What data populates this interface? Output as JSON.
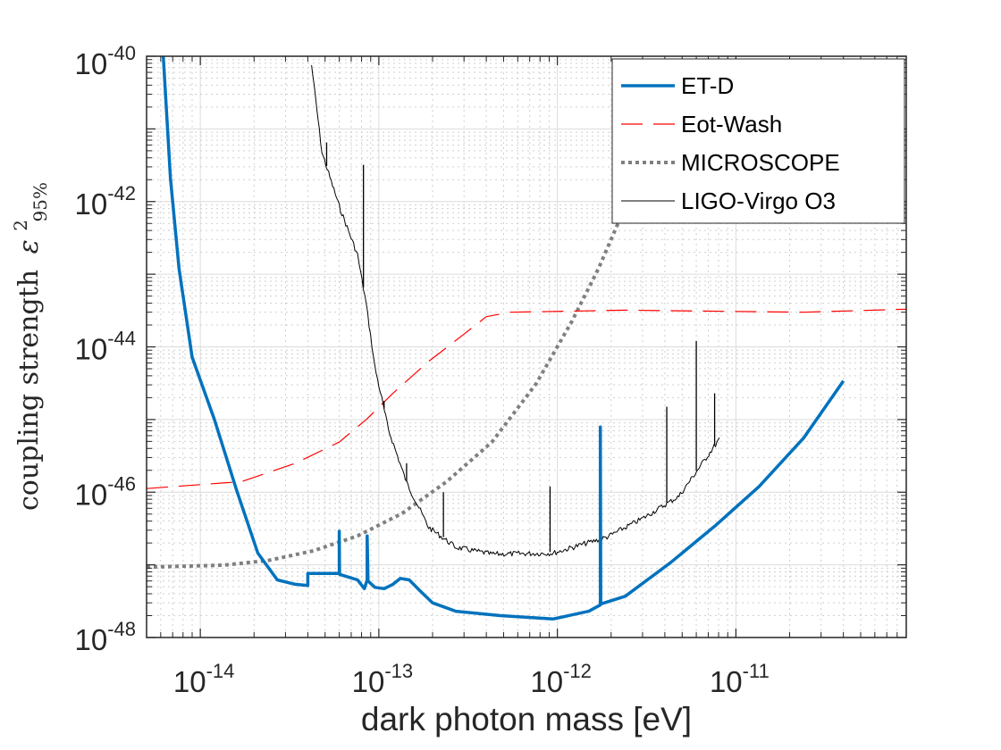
{
  "chart_data": {
    "type": "line",
    "xlabel": "dark photon mass [eV]",
    "ylabel": "coupling strength",
    "ylabel_symbol": "ε",
    "ylabel_sup": "2",
    "ylabel_sub": "95%",
    "x_scale": "log",
    "y_scale": "log",
    "xlim": [
      5e-15,
      9e-11
    ],
    "ylim": [
      1e-48,
      1e-40
    ],
    "x_ticks": [
      {
        "base": "10",
        "exp": "-14",
        "value": 1e-14
      },
      {
        "base": "10",
        "exp": "-13",
        "value": 1e-13
      },
      {
        "base": "10",
        "exp": "-12",
        "value": 1e-12
      },
      {
        "base": "10",
        "exp": "-11",
        "value": 1e-11
      }
    ],
    "y_ticks": [
      {
        "base": "10",
        "exp": "-40",
        "value": 1e-40
      },
      {
        "base": "10",
        "exp": "-42",
        "value": 1e-42
      },
      {
        "base": "10",
        "exp": "-44",
        "value": 1e-44
      },
      {
        "base": "10",
        "exp": "-46",
        "value": 1e-46
      },
      {
        "base": "10",
        "exp": "-48",
        "value": 1e-48
      }
    ],
    "grid": true,
    "legend_position": "top-right",
    "series": [
      {
        "name": "ET-D",
        "color": "#0072BD",
        "style": "solid-thick",
        "x": [
          6.2e-15,
          6.8e-15,
          7.6e-15,
          9e-15,
          1.2e-14,
          1.6e-14,
          2.1e-14,
          2.7e-14,
          3.4e-14,
          4e-14,
          4e-14,
          6e-14,
          6e-14,
          6.02e-14,
          7.6e-14,
          8.3e-14,
          8.6e-14,
          8.6e-14,
          8.7e-14,
          9.5e-14,
          1.07e-13,
          1.2e-13,
          1.32e-13,
          1.48e-13,
          1.7e-13,
          2e-13,
          2.7e-13,
          4.8e-13,
          9.5e-13,
          1.5e-12,
          1.74e-12,
          1.74e-12,
          1.75e-12,
          2.4e-12,
          4.3e-12,
          7.6e-12,
          1.35e-11,
          2.4e-11,
          4e-11
        ],
        "y": [
          1e-40,
          2.1e-42,
          1.2e-43,
          7.2e-45,
          1e-45,
          1.05e-46,
          1.45e-47,
          6.2e-48,
          5.4e-48,
          5.2e-48,
          7.6e-48,
          7.6e-48,
          2.9e-47,
          7.4e-48,
          6.2e-48,
          4.7e-48,
          6.2e-48,
          2.5e-47,
          6e-48,
          4.9e-48,
          4.7e-48,
          5.4e-48,
          6.5e-48,
          6.2e-48,
          4.4e-48,
          3e-48,
          2.3e-48,
          2e-48,
          1.8e-48,
          2.3e-48,
          2.8e-48,
          7.9e-46,
          2.9e-48,
          3.7e-48,
          1.07e-47,
          3.4e-47,
          1.2e-46,
          5.6e-46,
          3.4e-45
        ]
      },
      {
        "name": "Eot-Wash",
        "color": "#FF0000",
        "style": "dashed",
        "x": [
          5e-15,
          1.7e-14,
          3.4e-14,
          6e-14,
          8.5e-14,
          1.2e-13,
          1.9e-13,
          3e-13,
          4e-13,
          5.4e-13,
          2.4e-12,
          2.4e-11,
          9e-11
        ],
        "y": [
          1.12e-46,
          1.4e-46,
          2.5e-46,
          4.9e-46,
          1e-45,
          2.3e-45,
          6.3e-45,
          1.5e-44,
          2.6e-44,
          3e-44,
          3.2e-44,
          3e-44,
          3.3e-44
        ]
      },
      {
        "name": "MICROSCOPE",
        "color": "#808080",
        "style": "dotted",
        "x": [
          5e-15,
          1.35e-14,
          2.4e-14,
          4.3e-14,
          7.6e-14,
          1.35e-13,
          2.4e-13,
          4.3e-13,
          7.6e-13,
          1.2e-12,
          1.7e-12,
          2.3e-12,
          3e-12
        ],
        "y": [
          9.3e-48,
          9.9e-48,
          1.15e-47,
          1.56e-47,
          2.5e-47,
          5.1e-47,
          1.4e-46,
          4.9e-46,
          3.1e-45,
          2.2e-44,
          1.2e-43,
          6.7e-43,
          4.9e-42
        ]
      },
      {
        "name": "LIGO-Virgo O3",
        "color": "#000000",
        "style": "solid-thin",
        "x": [
          4.2e-14,
          4.8e-14,
          6e-14,
          7.6e-14,
          8.5e-14,
          9.5e-14,
          1.13e-13,
          1.43e-13,
          1.9e-13,
          2.7e-13,
          4.3e-13,
          9.5e-13,
          1.9e-12,
          3e-12,
          4.8e-12,
          8.1e-12
        ],
        "y": [
          7.8e-41,
          4.9e-42,
          8.9e-43,
          1.9e-43,
          4e-44,
          5.5e-45,
          7.6e-46,
          1.4e-46,
          3.4e-47,
          1.8e-47,
          1.45e-47,
          1.5e-47,
          2.5e-47,
          4.5e-47,
          9.1e-47,
          5.6e-46
        ],
        "spikes": {
          "x": [
            5.1e-14,
            8.2e-14,
            1.07e-13,
            1.43e-13,
            2.3e-13,
            9.1e-13,
            4.1e-12,
            6e-12,
            7.6e-12
          ],
          "y": [
            6.5e-42,
            3.2e-42,
            1.8e-45,
            2.5e-46,
            1e-46,
            1.2e-46,
            1.5e-45,
            1.2e-44,
            2.3e-45
          ]
        }
      }
    ]
  }
}
